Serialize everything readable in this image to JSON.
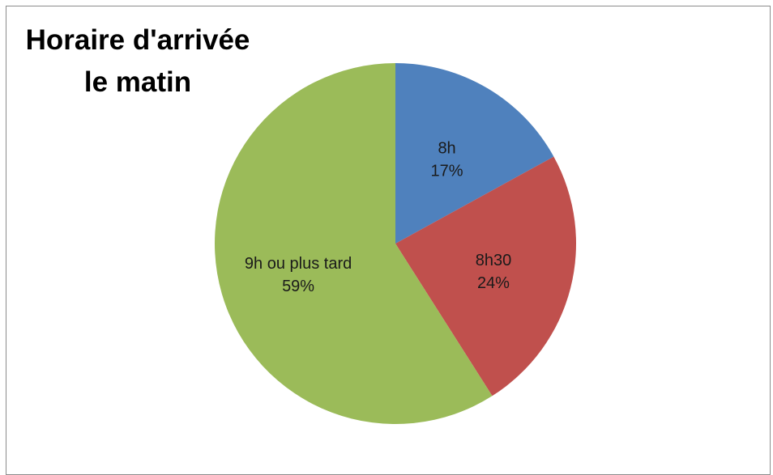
{
  "chart_data": {
    "type": "pie",
    "title_lines": [
      "Horaire d'arrivée",
      "le matin"
    ],
    "categories": [
      "8h",
      "8h30",
      "9h ou plus tard"
    ],
    "values": [
      17,
      24,
      59
    ],
    "value_labels": [
      "17%",
      "24%",
      "59%"
    ],
    "colors": [
      "#4f81bd",
      "#c0504d",
      "#9bbb59"
    ],
    "start_angle_deg": 0,
    "direction": "clockwise",
    "legend": "none",
    "data_labels": "inside"
  }
}
